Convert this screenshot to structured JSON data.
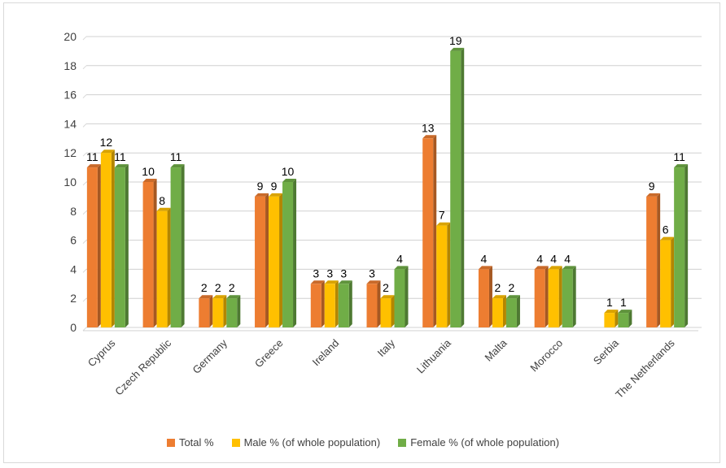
{
  "chart_data": {
    "type": "bar",
    "title": "",
    "xlabel": "",
    "ylabel": "",
    "ylim": [
      0,
      20
    ],
    "yticks": [
      0,
      2,
      4,
      6,
      8,
      10,
      12,
      14,
      16,
      18,
      20
    ],
    "grid": true,
    "legend_position": "bottom",
    "categories": [
      "Cyprus",
      "Czech Republic",
      "Germany",
      "Greece",
      "Ireland",
      "Italy",
      "Lithuania",
      "Malta",
      "Morocco",
      "Serbia",
      "The Netherlands"
    ],
    "series": [
      {
        "name": "Total %",
        "color": "#ed7d31",
        "values": [
          11,
          10,
          2,
          9,
          3,
          3,
          13,
          4,
          4,
          null,
          9
        ]
      },
      {
        "name": "Male % (of whole population)",
        "color": "#ffc000",
        "values": [
          12,
          8,
          2,
          9,
          3,
          2,
          7,
          2,
          4,
          1,
          6
        ]
      },
      {
        "name": "Female % (of whole population)",
        "color": "#70ad47",
        "values": [
          11,
          11,
          2,
          10,
          3,
          4,
          19,
          2,
          4,
          1,
          11
        ]
      }
    ]
  }
}
